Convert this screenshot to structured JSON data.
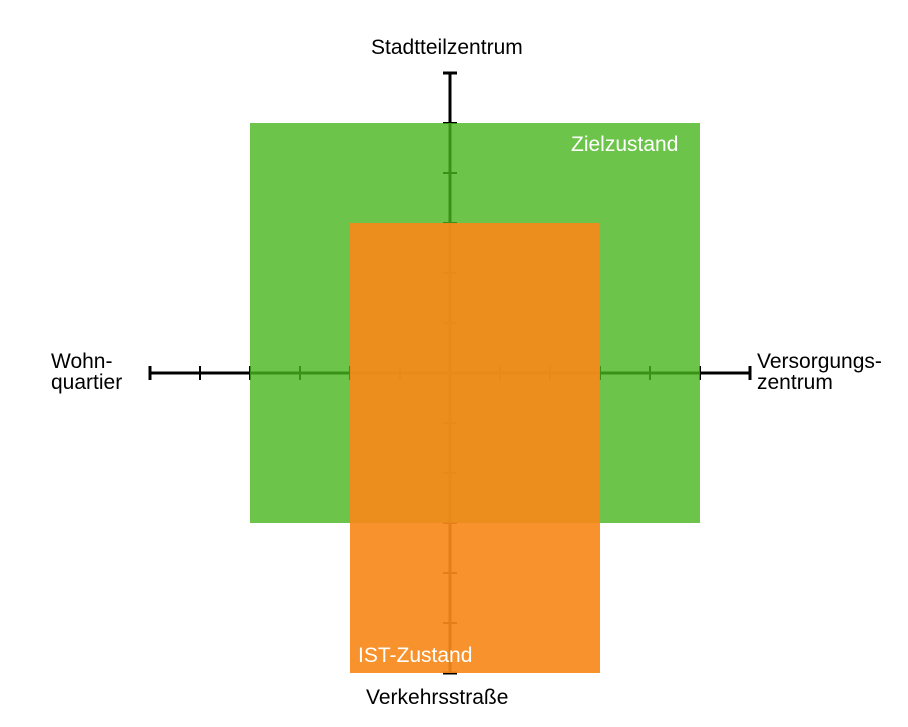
{
  "axes": {
    "top": "Stadtteilzentrum",
    "bottom": "Verkehrsstraße",
    "left_line1": "Wohn-",
    "left_line2": "quartier",
    "right_line1": "Versorgungs-",
    "right_line2": "zentrum",
    "ticks_per_side": 6
  },
  "regions": [
    {
      "name": "Zielzustand",
      "color": "#47b61d",
      "x_range": [
        -4,
        5
      ],
      "y_range": [
        -3,
        5
      ]
    },
    {
      "name": "IST-Zustand",
      "color": "#f7891a",
      "x_range": [
        -2,
        3
      ],
      "y_range": [
        -6,
        3
      ]
    }
  ]
}
